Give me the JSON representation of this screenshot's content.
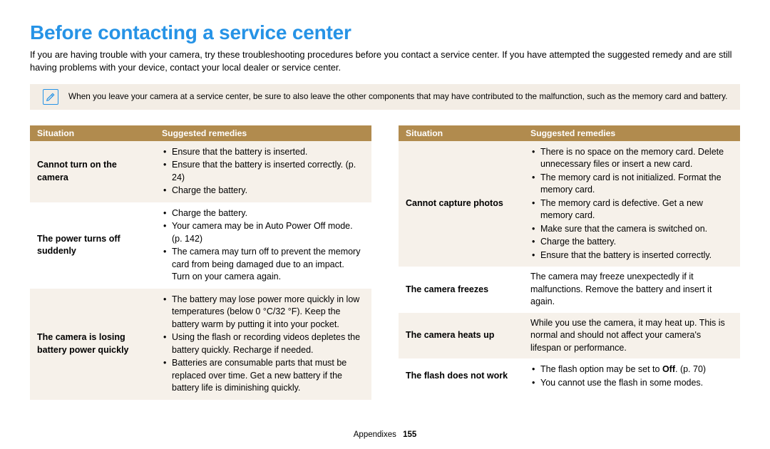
{
  "title": "Before contacting a service center",
  "intro": "If you are having trouble with your camera, try these troubleshooting procedures before you contact a service center. If you have attempted the suggested remedy and are still having problems with your device, contact your local dealer or service center.",
  "note": "When you leave your camera at a service center, be sure to also leave the other components that may have contributed to the malfunction, such as the memory card and battery.",
  "colors": {
    "title": "#2693e6",
    "header_bg": "#b18b4e",
    "header_fg": "#ffffff",
    "row_alt_bg": "#f6f1ea",
    "note_bg": "#f3ede5"
  },
  "headers": {
    "situation": "Situation",
    "remedies": "Suggested remedies"
  },
  "left_rows": [
    {
      "situation": "Cannot turn on the camera",
      "remedies": [
        "Ensure that the battery is inserted.",
        "Ensure that the battery is inserted correctly. (p. 24)",
        "Charge the battery."
      ],
      "odd": true
    },
    {
      "situation": "The power turns off suddenly",
      "remedies": [
        "Charge the battery.",
        "Your camera may be in Auto Power Off mode. (p. 142)",
        "The camera may turn off to prevent the memory card from being damaged due to an impact. Turn on your camera again."
      ],
      "odd": false
    },
    {
      "situation": "The camera is losing battery power quickly",
      "remedies": [
        "The battery may lose power more quickly in low temperatures (below 0 °C/32 °F). Keep the battery warm by putting it into your pocket.",
        "Using the flash or recording videos depletes the battery quickly. Recharge if needed.",
        "Batteries are consumable parts that must be replaced over time. Get a new battery if the battery life is diminishing quickly."
      ],
      "odd": true
    }
  ],
  "right_rows": [
    {
      "situation": "Cannot capture photos",
      "remedies": [
        "There is no space on the memory card. Delete unnecessary files or insert a new card.",
        "The memory card is not initialized. Format the memory card.",
        "The memory card is defective. Get a new memory card.",
        "Make sure that the camera is switched on.",
        "Charge the battery.",
        "Ensure that the battery is inserted correctly."
      ],
      "odd": true
    },
    {
      "situation": "The camera freezes",
      "plain": "The camera may freeze unexpectedly if it malfunctions. Remove the battery and insert it again.",
      "odd": false
    },
    {
      "situation": "The camera heats up",
      "plain": "While you use the camera, it may heat up. This is normal and should not affect your camera's lifespan or performance.",
      "odd": true
    },
    {
      "situation": "The flash does not work",
      "remedies_html": [
        "The flash option may be set to <b>Off</b>. (p. 70)",
        "You cannot use the flash in some modes."
      ],
      "odd": false
    }
  ],
  "footer": {
    "section": "Appendixes",
    "page": "155"
  }
}
